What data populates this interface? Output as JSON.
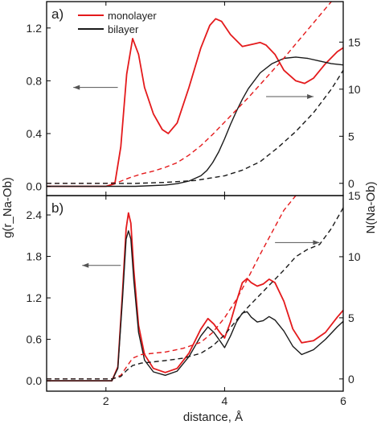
{
  "chart_data": {
    "type": "line",
    "xlabel": "distance, Å",
    "ylabel_left": "g(r_Na-Ob)",
    "ylabel_right": "N(Na-Ob)",
    "xlim": [
      1.0,
      6.0
    ],
    "x_ticks": [
      "2",
      "4",
      "6"
    ],
    "x_tick_values": [
      2,
      4,
      6
    ],
    "colors": {
      "monolayer": "#e41a1c",
      "bilayer": "#1a1a1a",
      "arrow": "#555555"
    },
    "legend": {
      "placement": "top-left",
      "entries": [
        {
          "label": "monolayer",
          "color": "#e41a1c"
        },
        {
          "label": "bilayer",
          "color": "#1a1a1a"
        }
      ]
    },
    "panels": [
      {
        "label": "a)",
        "left_ylim": [
          -0.07,
          1.4
        ],
        "right_ylim": [
          -1.3,
          19.3
        ],
        "left_ticks": [
          "0.0",
          "0.4",
          "0.8",
          "1.2"
        ],
        "left_tick_values": [
          0.0,
          0.4,
          0.8,
          1.2
        ],
        "right_ticks": [
          "0",
          "5",
          "10",
          "15"
        ],
        "right_tick_values": [
          0,
          5,
          10,
          15
        ],
        "arrow_left": {
          "x": [
            2.2,
            1.45
          ],
          "y": 0.75
        },
        "arrow_right": {
          "x": [
            4.7,
            5.5
          ],
          "y": 0.68
        },
        "series": [
          {
            "name": "monolayer",
            "axis": "left",
            "style": "solid",
            "color": "#e41a1c",
            "x": [
              1.0,
              2.0,
              2.15,
              2.25,
              2.35,
              2.45,
              2.55,
              2.65,
              2.8,
              2.95,
              3.05,
              3.2,
              3.4,
              3.6,
              3.75,
              3.85,
              3.95,
              4.1,
              4.3,
              4.5,
              4.6,
              4.7,
              4.85,
              5.0,
              5.2,
              5.35,
              5.5,
              5.7,
              5.9,
              6.0
            ],
            "y": [
              0.0,
              0.0,
              0.02,
              0.3,
              0.85,
              1.12,
              1.0,
              0.75,
              0.55,
              0.43,
              0.4,
              0.48,
              0.75,
              1.05,
              1.22,
              1.27,
              1.25,
              1.15,
              1.06,
              1.08,
              1.09,
              1.07,
              1.0,
              0.88,
              0.8,
              0.78,
              0.82,
              0.93,
              1.02,
              1.05
            ]
          },
          {
            "name": "bilayer",
            "axis": "left",
            "style": "solid",
            "color": "#1a1a1a",
            "x": [
              1.0,
              2.0,
              2.5,
              3.0,
              3.2,
              3.4,
              3.6,
              3.7,
              3.8,
              3.9,
              4.0,
              4.1,
              4.2,
              4.3,
              4.4,
              4.6,
              4.8,
              5.0,
              5.2,
              5.4,
              5.6,
              5.8,
              6.0
            ],
            "y": [
              0.0,
              0.0,
              0.0,
              0.01,
              0.02,
              0.04,
              0.08,
              0.12,
              0.18,
              0.26,
              0.36,
              0.47,
              0.57,
              0.66,
              0.74,
              0.86,
              0.93,
              0.97,
              0.98,
              0.97,
              0.95,
              0.93,
              0.92
            ]
          },
          {
            "name": "monolayer N",
            "axis": "right",
            "style": "dashed",
            "color": "#e41a1c",
            "x": [
              1.0,
              2.0,
              2.2,
              2.4,
              2.6,
              2.8,
              3.0,
              3.2,
              3.4,
              3.6,
              3.8,
              4.0,
              4.2,
              4.4,
              4.6,
              4.8,
              5.0,
              5.2,
              5.4,
              5.6,
              5.8
            ],
            "y": [
              0.0,
              0.0,
              0.1,
              0.6,
              1.0,
              1.3,
              1.7,
              2.2,
              3.0,
              4.0,
              5.2,
              6.5,
              7.8,
              9.1,
              10.5,
              11.9,
              13.3,
              14.8,
              16.3,
              17.8,
              19.3
            ]
          },
          {
            "name": "bilayer N",
            "axis": "right",
            "style": "dashed",
            "color": "#1a1a1a",
            "x": [
              1.0,
              2.0,
              2.5,
              3.0,
              3.5,
              4.0,
              4.3,
              4.6,
              4.9,
              5.2,
              5.5,
              5.8,
              6.0
            ],
            "y": [
              0.0,
              0.0,
              0.0,
              0.1,
              0.3,
              0.8,
              1.4,
              2.3,
              3.8,
              5.5,
              7.5,
              10.0,
              12.0
            ]
          }
        ]
      },
      {
        "label": "b)",
        "left_ylim": [
          -0.15,
          2.68
        ],
        "right_ylim": [
          -1.0,
          15.0
        ],
        "left_ticks": [
          "0.0",
          "0.6",
          "1.2",
          "1.8",
          "2.4"
        ],
        "left_tick_values": [
          0.0,
          0.6,
          1.2,
          1.8,
          2.4
        ],
        "right_ticks": [
          "0",
          "5",
          "10",
          "15"
        ],
        "right_tick_values": [
          0,
          5,
          10,
          15
        ],
        "arrow_left": {
          "x": [
            2.25,
            1.6
          ],
          "y": 1.67
        },
        "arrow_right": {
          "x": [
            4.85,
            5.6
          ],
          "y": 2.0
        },
        "series": [
          {
            "name": "monolayer",
            "axis": "left",
            "style": "solid",
            "color": "#e41a1c",
            "x": [
              1.0,
              2.1,
              2.2,
              2.28,
              2.34,
              2.38,
              2.42,
              2.47,
              2.55,
              2.65,
              2.8,
              3.0,
              3.2,
              3.4,
              3.6,
              3.72,
              3.82,
              3.92,
              4.0,
              4.1,
              4.2,
              4.3,
              4.38,
              4.45,
              4.55,
              4.65,
              4.75,
              4.85,
              5.0,
              5.15,
              5.3,
              5.5,
              5.7,
              5.9,
              6.0
            ],
            "y": [
              0.0,
              0.0,
              0.2,
              1.3,
              2.2,
              2.43,
              2.28,
              1.6,
              0.8,
              0.38,
              0.18,
              0.12,
              0.18,
              0.4,
              0.75,
              0.9,
              0.82,
              0.7,
              0.62,
              0.85,
              1.15,
              1.42,
              1.48,
              1.42,
              1.37,
              1.4,
              1.47,
              1.42,
              1.15,
              0.75,
              0.55,
              0.58,
              0.7,
              0.92,
              1.02
            ]
          },
          {
            "name": "bilayer",
            "axis": "left",
            "style": "solid",
            "color": "#1a1a1a",
            "x": [
              1.0,
              2.1,
              2.2,
              2.28,
              2.34,
              2.38,
              2.42,
              2.47,
              2.55,
              2.65,
              2.8,
              3.0,
              3.2,
              3.4,
              3.6,
              3.72,
              3.82,
              3.92,
              4.0,
              4.1,
              4.2,
              4.3,
              4.38,
              4.45,
              4.55,
              4.65,
              4.75,
              4.85,
              5.0,
              5.15,
              5.3,
              5.5,
              5.7,
              5.9,
              6.0
            ],
            "y": [
              0.0,
              0.0,
              0.18,
              1.2,
              2.05,
              2.17,
              2.05,
              1.45,
              0.7,
              0.3,
              0.13,
              0.08,
              0.14,
              0.35,
              0.65,
              0.78,
              0.7,
              0.58,
              0.48,
              0.65,
              0.85,
              0.98,
              1.0,
              0.92,
              0.85,
              0.87,
              0.93,
              0.88,
              0.72,
              0.5,
              0.38,
              0.45,
              0.6,
              0.78,
              0.86
            ]
          },
          {
            "name": "monolayer N",
            "axis": "right",
            "style": "dashed",
            "color": "#e41a1c",
            "x": [
              1.0,
              2.1,
              2.25,
              2.35,
              2.45,
              2.6,
              2.8,
              3.0,
              3.3,
              3.6,
              3.8,
              4.0,
              4.2,
              4.4,
              4.6,
              4.8,
              5.0,
              5.2
            ],
            "y": [
              0.0,
              0.0,
              0.3,
              1.0,
              1.7,
              2.0,
              2.1,
              2.2,
              2.5,
              3.0,
              3.8,
              5.0,
              6.5,
              8.3,
              10.2,
              12.0,
              13.8,
              15.0
            ]
          },
          {
            "name": "bilayer N",
            "axis": "right",
            "style": "dashed",
            "color": "#1a1a1a",
            "x": [
              1.0,
              2.1,
              2.25,
              2.35,
              2.45,
              2.6,
              2.8,
              3.0,
              3.3,
              3.6,
              3.8,
              4.0,
              4.2,
              4.4,
              4.6,
              4.8,
              5.0,
              5.2,
              5.4,
              5.6,
              5.8,
              6.0
            ],
            "y": [
              0.0,
              0.0,
              0.2,
              0.7,
              1.1,
              1.3,
              1.4,
              1.5,
              1.7,
              2.1,
              2.7,
              3.6,
              4.8,
              5.9,
              6.9,
              7.9,
              8.9,
              10.0,
              10.6,
              11.0,
              12.3,
              14.0
            ]
          }
        ]
      }
    ]
  }
}
